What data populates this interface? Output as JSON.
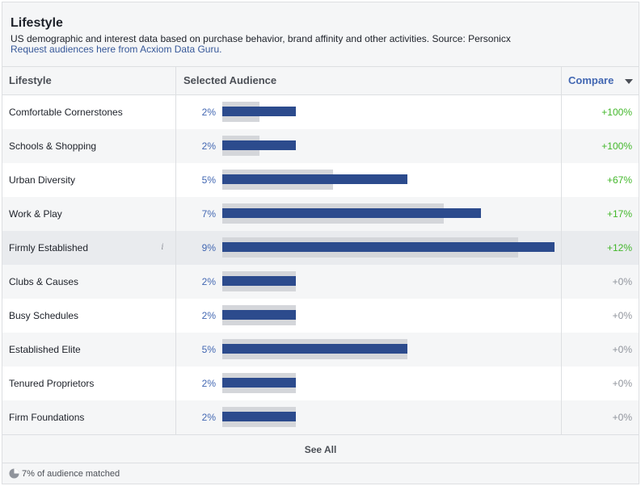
{
  "header": {
    "title": "Lifestyle",
    "subtitle": "US demographic and interest data based on purchase behavior, brand affinity and other activities. Source: Personicx",
    "link": "Request audiences here from Acxiom Data Guru."
  },
  "table": {
    "col_lifestyle": "Lifestyle",
    "col_selected": "Selected Audience",
    "col_compare": "Compare",
    "rows": [
      {
        "name": "Comfortable Cornerstones",
        "pct": "2%",
        "level": 2,
        "baseline": 1,
        "compare": "+100%",
        "positive": true
      },
      {
        "name": "Schools & Shopping",
        "pct": "2%",
        "level": 2,
        "baseline": 1,
        "compare": "+100%",
        "positive": true
      },
      {
        "name": "Urban Diversity",
        "pct": "5%",
        "level": 5,
        "baseline": 3,
        "compare": "+67%",
        "positive": true
      },
      {
        "name": "Work & Play",
        "pct": "7%",
        "level": 7,
        "baseline": 6,
        "compare": "+17%",
        "positive": true
      },
      {
        "name": "Firmly Established",
        "pct": "9%",
        "level": 9,
        "baseline": 8,
        "compare": "+12%",
        "positive": true,
        "highlight": true,
        "info": "i"
      },
      {
        "name": "Clubs & Causes",
        "pct": "2%",
        "level": 2,
        "baseline": 2,
        "compare": "+0%",
        "positive": false
      },
      {
        "name": "Busy Schedules",
        "pct": "2%",
        "level": 2,
        "baseline": 2,
        "compare": "+0%",
        "positive": false
      },
      {
        "name": "Established Elite",
        "pct": "5%",
        "level": 5,
        "baseline": 5,
        "compare": "+0%",
        "positive": false
      },
      {
        "name": "Tenured Proprietors",
        "pct": "2%",
        "level": 2,
        "baseline": 2,
        "compare": "+0%",
        "positive": false
      },
      {
        "name": "Firm Foundations",
        "pct": "2%",
        "level": 2,
        "baseline": 2,
        "compare": "+0%",
        "positive": false
      }
    ]
  },
  "see_all": "See All",
  "footer": {
    "matched_text": "7% of audience matched",
    "icon": "pie-chart-icon"
  },
  "colors": {
    "bar": "#2c4b8d",
    "bar_baseline": "#d4d6da",
    "positive": "#42b72a",
    "neutral": "#90949c",
    "link": "#365899"
  }
}
